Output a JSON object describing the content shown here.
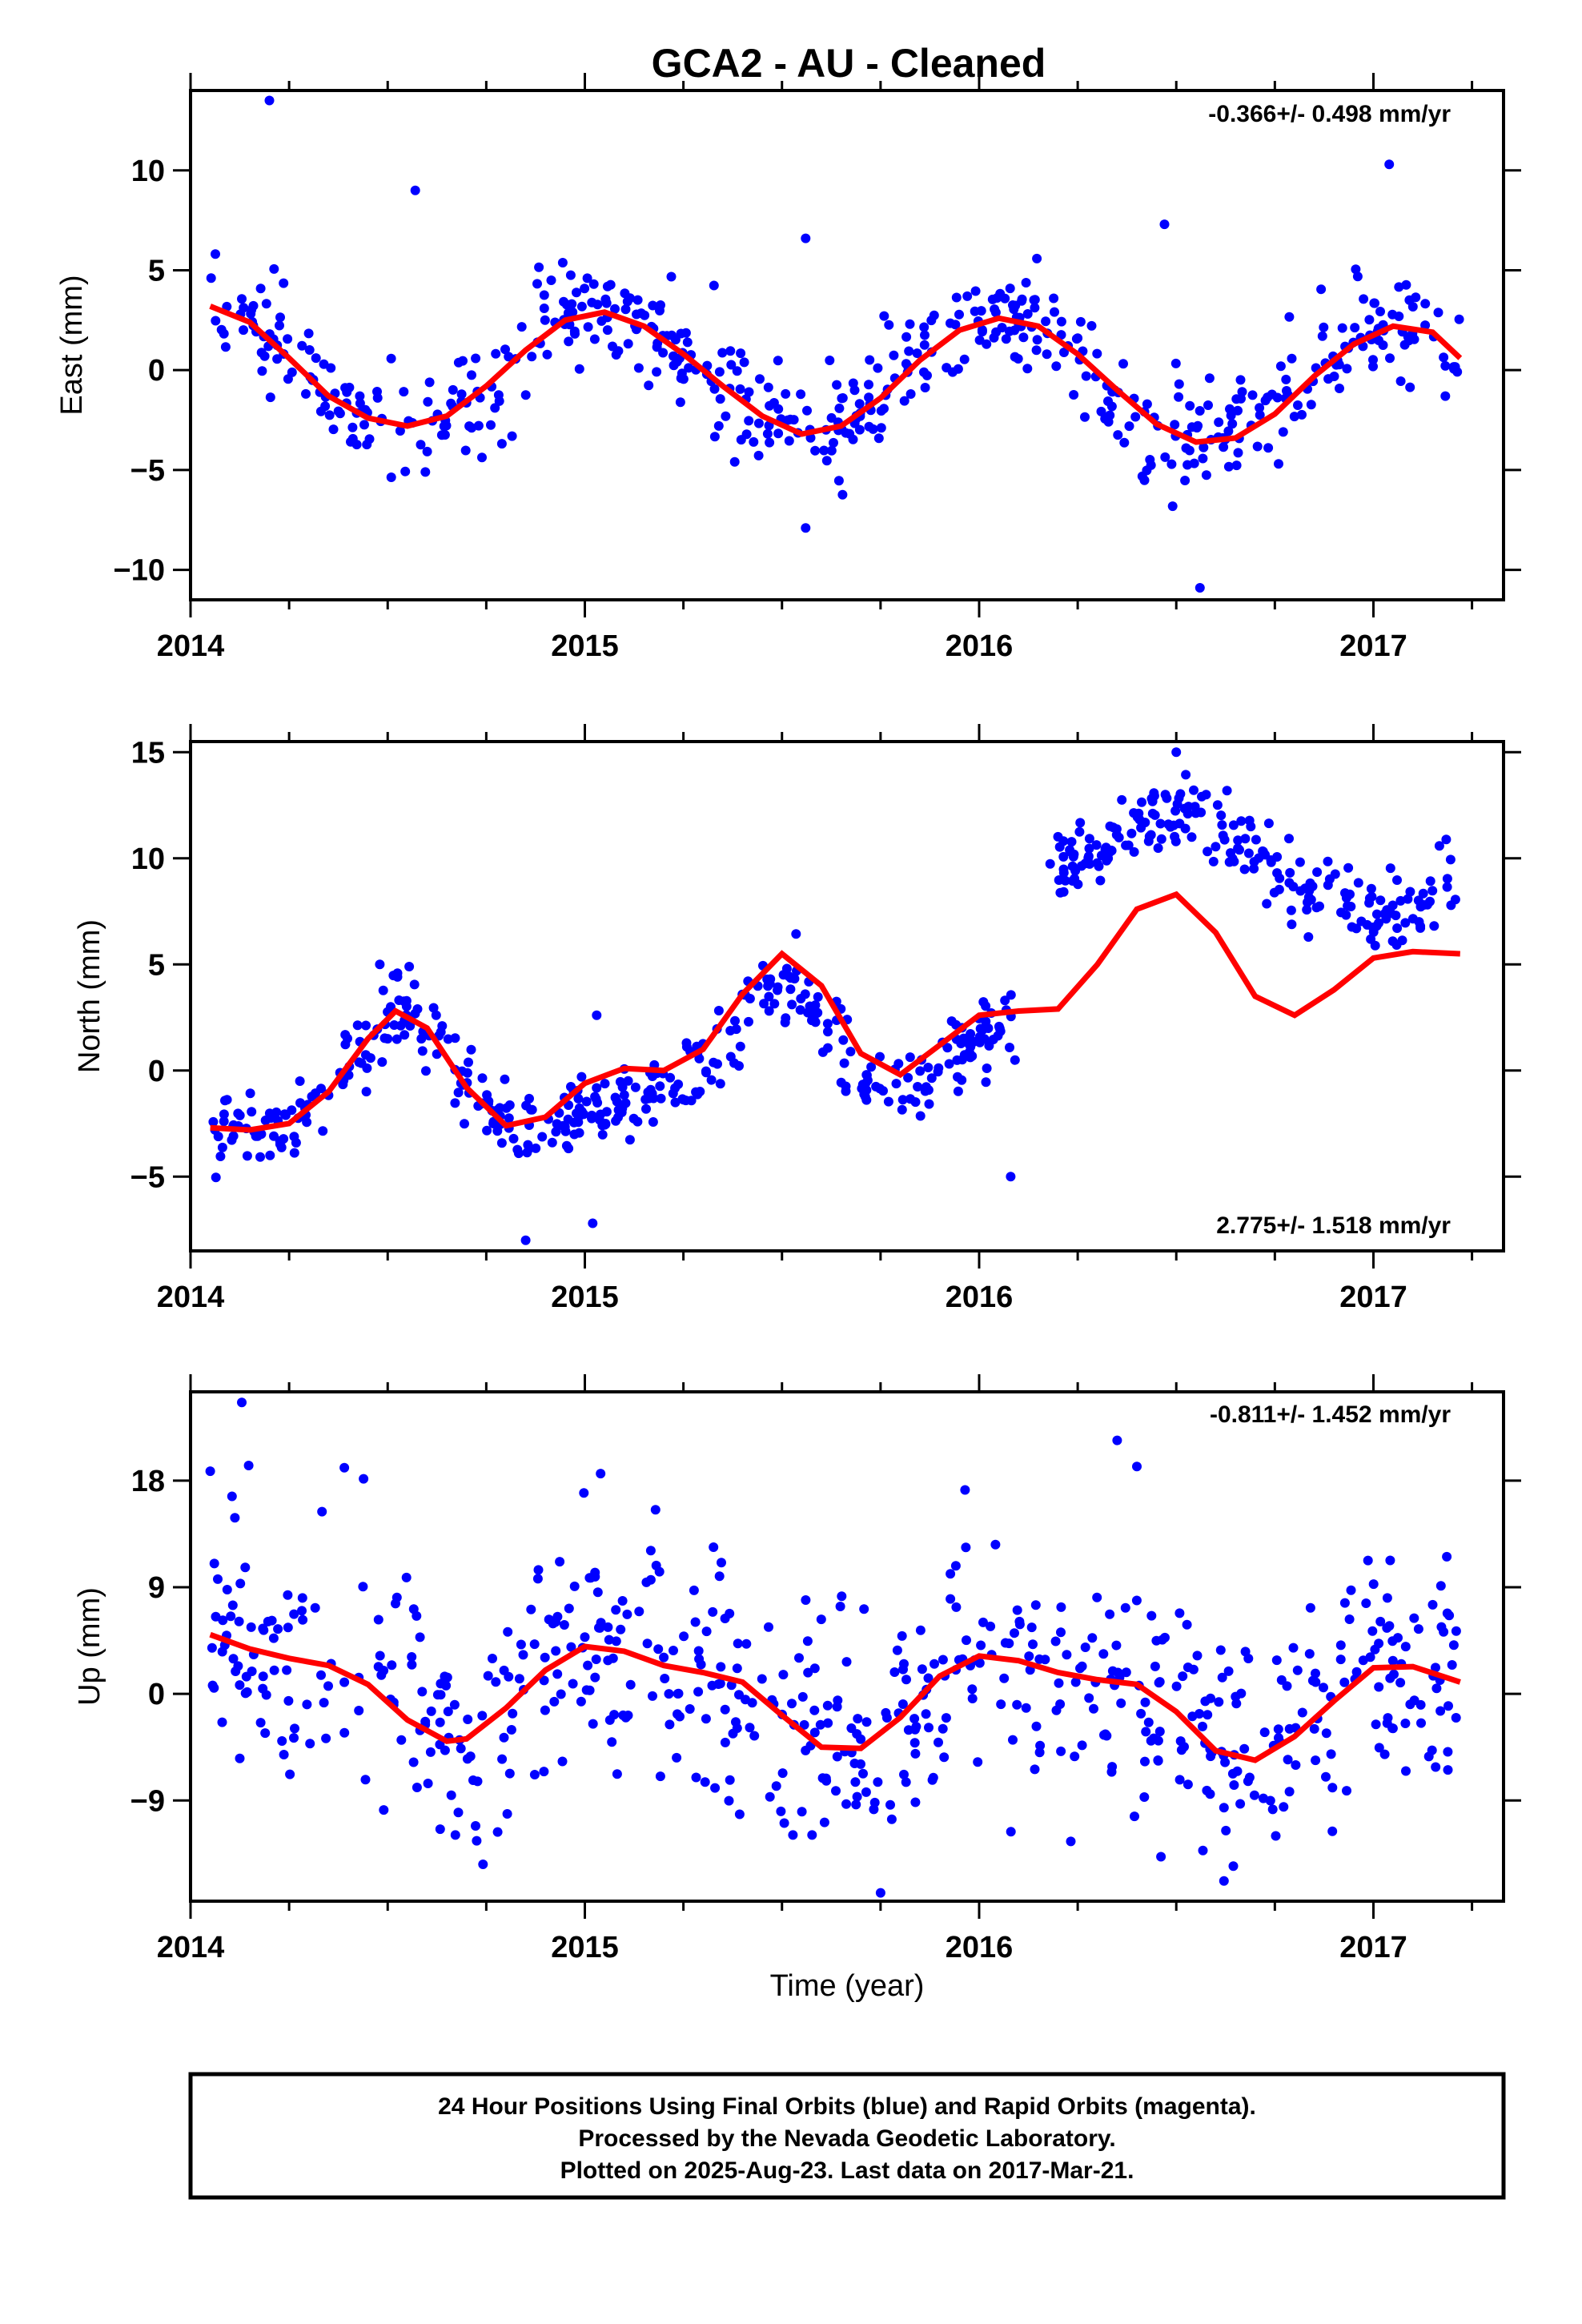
{
  "title": "GCA2  - AU - Cleaned",
  "colors": {
    "points": "#0000ff",
    "fit": "#ff0000",
    "frame": "#000000"
  },
  "chart_data": [
    {
      "type": "scatter",
      "id": "east",
      "ylabel": "East (mm)",
      "xlabel": "",
      "xlim": [
        2014.0,
        2017.33
      ],
      "ylim": [
        -11.5,
        14
      ],
      "x_ticks": [
        "2014",
        "2015",
        "2016",
        "2017"
      ],
      "y_ticks": [
        "10",
        "5",
        "0",
        "−5",
        "−10"
      ],
      "y_tick_values": [
        10,
        5,
        0,
        -5,
        -10
      ],
      "rate_text": "-0.366+/- 0.498 mm/yr",
      "rate_position": "top-right",
      "fit": {
        "x": [
          2014.05,
          2014.15,
          2014.25,
          2014.35,
          2014.45,
          2014.55,
          2014.65,
          2014.75,
          2014.85,
          2014.95,
          2015.05,
          2015.15,
          2015.25,
          2015.35,
          2015.45,
          2015.55,
          2015.65,
          2015.75,
          2015.85,
          2015.95,
          2016.05,
          2016.15,
          2016.25,
          2016.35,
          2016.45,
          2016.55,
          2016.65,
          2016.75,
          2016.85,
          2016.95,
          2017.05,
          2017.15,
          2017.22
        ],
        "y": [
          3.2,
          2.4,
          0.6,
          -1.3,
          -2.4,
          -2.8,
          -2.3,
          -0.8,
          1.0,
          2.5,
          2.9,
          2.2,
          0.8,
          -0.8,
          -2.3,
          -3.2,
          -2.8,
          -1.4,
          0.5,
          2.0,
          2.6,
          2.2,
          0.8,
          -1.0,
          -2.7,
          -3.6,
          -3.4,
          -2.2,
          -0.3,
          1.3,
          2.2,
          1.9,
          0.6
        ]
      },
      "scatter": {
        "amp": 3.0,
        "phase": 0.1,
        "trend": -0.4,
        "offset": 0.2,
        "noise": 1.4,
        "n": 560,
        "xmin": 2014.05,
        "xmax": 2017.22,
        "outliers": [
          [
            2014.2,
            13.5
          ],
          [
            2014.57,
            9.0
          ],
          [
            2015.56,
            6.6
          ],
          [
            2015.56,
            -7.9
          ],
          [
            2016.47,
            7.3
          ],
          [
            2016.56,
            -10.9
          ],
          [
            2017.04,
            10.3
          ]
        ]
      }
    },
    {
      "type": "scatter",
      "id": "north",
      "ylabel": "North (mm)",
      "xlabel": "",
      "xlim": [
        2014.0,
        2017.33
      ],
      "ylim": [
        -8.5,
        15.5
      ],
      "x_ticks": [
        "2014",
        "2015",
        "2016",
        "2017"
      ],
      "y_ticks": [
        "15",
        "10",
        "5",
        "0",
        "−5"
      ],
      "y_tick_values": [
        15,
        10,
        5,
        0,
        -5
      ],
      "rate_text": "2.775+/- 1.518 mm/yr",
      "rate_position": "bottom-right",
      "fit": {
        "x": [
          2014.05,
          2014.15,
          2014.25,
          2014.35,
          2014.45,
          2014.52,
          2014.6,
          2014.7,
          2014.8,
          2014.9,
          2015.0,
          2015.1,
          2015.2,
          2015.3,
          2015.4,
          2015.5,
          2015.6,
          2015.7,
          2015.8,
          2015.9,
          2016.0,
          2016.1,
          2016.2,
          2016.3,
          2016.4,
          2016.5,
          2016.6,
          2016.7,
          2016.8,
          2016.9,
          2017.0,
          2017.1,
          2017.22
        ],
        "y": [
          -2.7,
          -2.8,
          -2.5,
          -1.0,
          1.5,
          2.8,
          2.0,
          -0.8,
          -2.6,
          -2.2,
          -0.6,
          0.1,
          0.0,
          1.0,
          3.6,
          5.5,
          4.0,
          0.8,
          -0.2,
          1.2,
          2.6,
          2.8,
          2.9,
          5.0,
          7.6,
          8.3,
          6.5,
          3.5,
          2.6,
          3.8,
          5.3,
          5.6,
          5.5
        ]
      },
      "scatter_segments": [
        {
          "xmin": 2014.05,
          "xmax": 2016.1,
          "amp": 2.5,
          "base": -2.0,
          "trend": -0.1,
          "noise": 0.9,
          "n": 420
        },
        {
          "xmin": 2016.18,
          "xmax": 2017.22,
          "amp": 2.2,
          "base": 9.5,
          "trend": -0.6,
          "noise": 0.9,
          "n": 220
        }
      ],
      "outliers": [
        [
          2014.48,
          5.0
        ],
        [
          2015.03,
          2.6
        ],
        [
          2014.85,
          -8.0
        ],
        [
          2015.02,
          -7.2
        ],
        [
          2016.08,
          -5.0
        ],
        [
          2016.5,
          15.0
        ]
      ]
    },
    {
      "type": "scatter",
      "id": "up",
      "ylabel": "Up (mm)",
      "xlabel": "Time (year)",
      "xlim": [
        2014.0,
        2017.33
      ],
      "ylim": [
        -17.5,
        25.5
      ],
      "x_ticks": [
        "2014",
        "2015",
        "2016",
        "2017"
      ],
      "y_ticks": [
        "18",
        "9",
        "0",
        "−9"
      ],
      "y_tick_values": [
        18,
        9,
        0,
        -9
      ],
      "rate_text": "-0.811+/- 1.452 mm/yr",
      "rate_position": "top-right",
      "fit": {
        "x": [
          2014.05,
          2014.15,
          2014.25,
          2014.35,
          2014.45,
          2014.55,
          2014.65,
          2014.7,
          2014.8,
          2014.9,
          2015.0,
          2015.1,
          2015.2,
          2015.3,
          2015.4,
          2015.5,
          2015.6,
          2015.7,
          2015.8,
          2015.9,
          2016.0,
          2016.1,
          2016.2,
          2016.3,
          2016.4,
          2016.5,
          2016.6,
          2016.7,
          2016.8,
          2016.9,
          2017.0,
          2017.1,
          2017.22
        ],
        "y": [
          5.0,
          3.8,
          3.0,
          2.4,
          0.8,
          -2.2,
          -4.0,
          -3.8,
          -1.2,
          2.0,
          4.0,
          3.6,
          2.4,
          1.8,
          1.0,
          -1.8,
          -4.5,
          -4.6,
          -2.0,
          1.5,
          3.2,
          2.8,
          1.8,
          1.2,
          0.8,
          -1.5,
          -4.8,
          -5.6,
          -3.6,
          -0.6,
          2.2,
          2.3,
          1.0
        ]
      },
      "scatter": {
        "noise": 5.2,
        "n": 620,
        "xmin": 2014.05,
        "xmax": 2017.22
      },
      "outliers": [
        [
          2014.13,
          24.6
        ],
        [
          2014.39,
          19.1
        ],
        [
          2015.04,
          18.6
        ],
        [
          2016.35,
          21.4
        ],
        [
          2016.4,
          19.2
        ],
        [
          2015.75,
          -16.8
        ],
        [
          2014.05,
          18.8
        ]
      ]
    }
  ],
  "footer": {
    "line1": "24 Hour Positions Using Final Orbits (blue) and Rapid Orbits (magenta).",
    "line2": "Processed by the Nevada Geodetic Laboratory.",
    "line3": "Plotted on 2025-Aug-23. Last data on 2017-Mar-21."
  }
}
